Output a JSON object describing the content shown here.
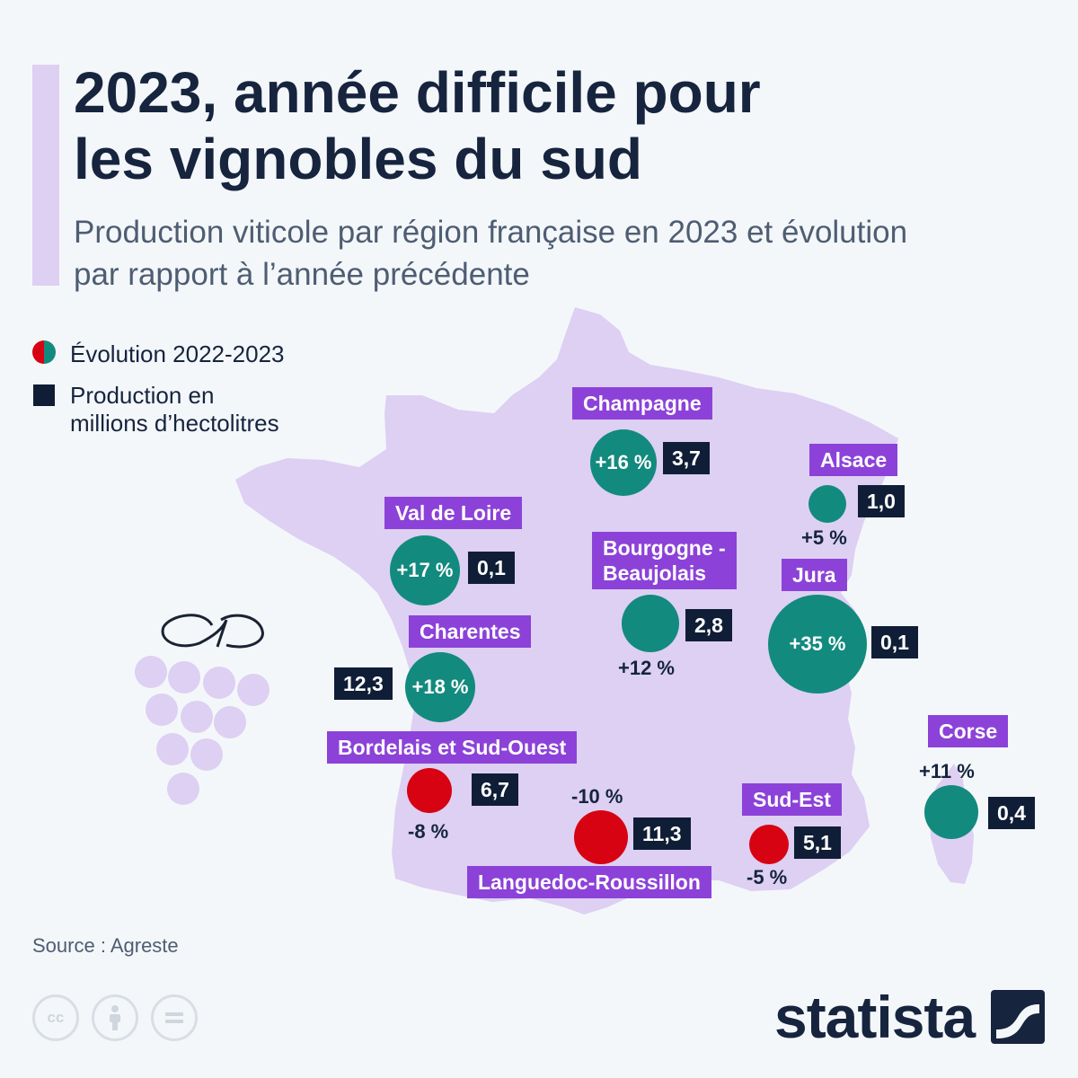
{
  "title": {
    "line1": "2023, année difficile pour",
    "line2": "les vignobles du sud"
  },
  "subtitle": {
    "line1": "Production viticole par région française en 2023 et évolution",
    "line2": "par rapport à l’année précédente"
  },
  "legend": {
    "evolution": "Évolution 2022-2023",
    "production_line1": "Production en",
    "production_line2": "millions d’hectolitres"
  },
  "colors": {
    "positive": "#138a7e",
    "negative": "#d70312",
    "label_bg": "#8c42d8",
    "value_bg": "#0f1e36",
    "map_fill": "#ddd0f3"
  },
  "regions": {
    "champagne": {
      "name": "Champagne",
      "change": "+16 %",
      "production": "3,7"
    },
    "alsace": {
      "name": "Alsace",
      "change": "+5 %",
      "production": "1,0"
    },
    "val_de_loire": {
      "name": "Val de Loire",
      "change": "+17 %",
      "production": "0,1"
    },
    "bourgogne": {
      "name_line1": "Bourgogne -",
      "name_line2": "Beaujolais",
      "change": "+12 %",
      "production": "2,8"
    },
    "jura": {
      "name": "Jura",
      "change": "+35 %",
      "production": "0,1"
    },
    "charentes": {
      "name": "Charentes",
      "change": "+18 %",
      "production": "12,3"
    },
    "bordelais": {
      "name": "Bordelais et Sud-Ouest",
      "change": "-8 %",
      "production": "6,7"
    },
    "languedoc": {
      "name": "Languedoc-Roussillon",
      "change": "-10 %",
      "production": "11,3"
    },
    "sud_est": {
      "name": "Sud-Est",
      "change": "-5 %",
      "production": "5,1"
    },
    "corse": {
      "name": "Corse",
      "change": "+11 %",
      "production": "0,4"
    }
  },
  "source": "Source : Agreste",
  "license_icons": [
    "creative-commons-icon",
    "attribution-icon",
    "no-derivatives-icon"
  ],
  "license_cc_text": "cc",
  "brand": {
    "name": "statista"
  }
}
